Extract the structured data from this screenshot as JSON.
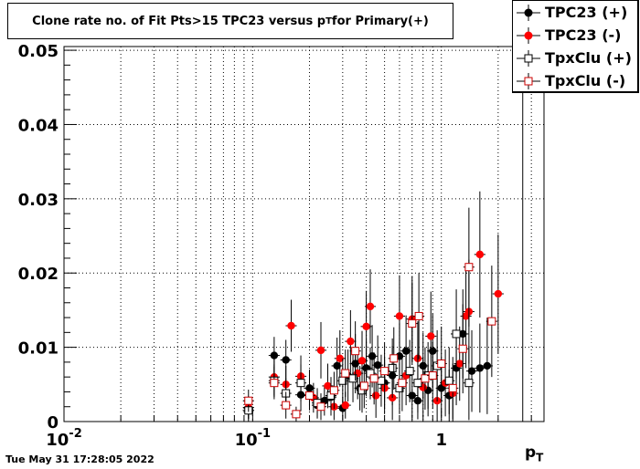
{
  "title_main": "Clone rate no. of Fit Pts>15 TPC23 versus p",
  "title_sub": "T",
  "title_tail": " for Primary(+)",
  "footer": "Tue May 31 17:28:05 2022",
  "xtitle_main": "p",
  "xtitle_sub": "T",
  "legend": [
    {
      "label": "TPC23 (+)",
      "color": "#000000",
      "marker": "filled-circle"
    },
    {
      "label": "TPC23 (-)",
      "color": "#ff0000",
      "marker": "filled-circle"
    },
    {
      "label": "TpxClu (+)",
      "color": "#000000",
      "marker": "open-square"
    },
    {
      "label": "TpxClu (-)",
      "color": "#cc0000",
      "marker": "open-square"
    }
  ],
  "chart_data": {
    "type": "scatter",
    "x_scale": "log",
    "xlim": [
      0.01,
      3.5
    ],
    "ylim": [
      0,
      0.0505
    ],
    "grid": true,
    "legend_position": "top-right",
    "x_tick_labels": [
      {
        "value": 0.01,
        "base": "10",
        "exp": "-2"
      },
      {
        "value": 0.1,
        "base": "10",
        "exp": "-1"
      },
      {
        "value": 1,
        "base": "1",
        "exp": ""
      }
    ],
    "y_ticks": [
      {
        "value": 0,
        "label": "0"
      },
      {
        "value": 0.01,
        "label": "0.01"
      },
      {
        "value": 0.02,
        "label": "0.02"
      },
      {
        "value": 0.03,
        "label": "0.03"
      },
      {
        "value": 0.04,
        "label": "0.04"
      },
      {
        "value": 0.05,
        "label": "0.05"
      }
    ],
    "series": [
      {
        "name": "TPC23 (+)",
        "color": "#000000",
        "marker": "filled-circle",
        "points": [
          {
            "x": 0.095,
            "y": 0.0015,
            "e": 0.0015
          },
          {
            "x": 0.13,
            "y": 0.0089,
            "e": 0.0025
          },
          {
            "x": 0.15,
            "y": 0.0083,
            "e": 0.0027
          },
          {
            "x": 0.18,
            "y": 0.0036,
            "e": 0.0022
          },
          {
            "x": 0.2,
            "y": 0.0045,
            "e": 0.0025
          },
          {
            "x": 0.22,
            "y": 0.0022,
            "e": 0.0018
          },
          {
            "x": 0.24,
            "y": 0.0028,
            "e": 0.002
          },
          {
            "x": 0.26,
            "y": 0.0033,
            "e": 0.0025
          },
          {
            "x": 0.28,
            "y": 0.0075,
            "e": 0.0038
          },
          {
            "x": 0.3,
            "y": 0.0018,
            "e": 0.0015
          },
          {
            "x": 0.32,
            "y": 0.0062,
            "e": 0.0035
          },
          {
            "x": 0.35,
            "y": 0.0078,
            "e": 0.004
          },
          {
            "x": 0.37,
            "y": 0.0045,
            "e": 0.003
          },
          {
            "x": 0.4,
            "y": 0.0072,
            "e": 0.0038
          },
          {
            "x": 0.43,
            "y": 0.0088,
            "e": 0.0042
          },
          {
            "x": 0.46,
            "y": 0.0076,
            "e": 0.004
          },
          {
            "x": 0.5,
            "y": 0.0052,
            "e": 0.0035
          },
          {
            "x": 0.55,
            "y": 0.0062,
            "e": 0.004
          },
          {
            "x": 0.6,
            "y": 0.0088,
            "e": 0.0045
          },
          {
            "x": 0.65,
            "y": 0.0095,
            "e": 0.0048
          },
          {
            "x": 0.7,
            "y": 0.0035,
            "e": 0.003
          },
          {
            "x": 0.75,
            "y": 0.0028,
            "e": 0.0025
          },
          {
            "x": 0.8,
            "y": 0.0075,
            "e": 0.0045
          },
          {
            "x": 0.85,
            "y": 0.0042,
            "e": 0.0035
          },
          {
            "x": 0.9,
            "y": 0.0095,
            "e": 0.005
          },
          {
            "x": 1.0,
            "y": 0.0045,
            "e": 0.004
          },
          {
            "x": 1.1,
            "y": 0.0035,
            "e": 0.0035
          },
          {
            "x": 1.2,
            "y": 0.0072,
            "e": 0.005
          },
          {
            "x": 1.3,
            "y": 0.0118,
            "e": 0.006
          },
          {
            "x": 1.45,
            "y": 0.0068,
            "e": 0.0055
          },
          {
            "x": 1.6,
            "y": 0.0072,
            "e": 0.006
          },
          {
            "x": 1.75,
            "y": 0.0075,
            "e": 0.0065
          }
        ]
      },
      {
        "name": "TPC23 (-)",
        "color": "#ff0000",
        "marker": "filled-circle",
        "points": [
          {
            "x": 0.095,
            "y": 0.0019,
            "e": 0.0015
          },
          {
            "x": 0.13,
            "y": 0.006,
            "e": 0.0025
          },
          {
            "x": 0.15,
            "y": 0.005,
            "e": 0.0025
          },
          {
            "x": 0.16,
            "y": 0.0129,
            "e": 0.0035
          },
          {
            "x": 0.18,
            "y": 0.0061,
            "e": 0.0028
          },
          {
            "x": 0.21,
            "y": 0.0032,
            "e": 0.002
          },
          {
            "x": 0.23,
            "y": 0.0096,
            "e": 0.0038
          },
          {
            "x": 0.25,
            "y": 0.0048,
            "e": 0.003
          },
          {
            "x": 0.27,
            "y": 0.002,
            "e": 0.0018
          },
          {
            "x": 0.29,
            "y": 0.0085,
            "e": 0.0038
          },
          {
            "x": 0.31,
            "y": 0.0022,
            "e": 0.0018
          },
          {
            "x": 0.33,
            "y": 0.0108,
            "e": 0.0042
          },
          {
            "x": 0.36,
            "y": 0.0065,
            "e": 0.0035
          },
          {
            "x": 0.38,
            "y": 0.0082,
            "e": 0.004
          },
          {
            "x": 0.4,
            "y": 0.0128,
            "e": 0.0048
          },
          {
            "x": 0.42,
            "y": 0.0155,
            "e": 0.005
          },
          {
            "x": 0.45,
            "y": 0.0035,
            "e": 0.003
          },
          {
            "x": 0.5,
            "y": 0.0045,
            "e": 0.0035
          },
          {
            "x": 0.55,
            "y": 0.0032,
            "e": 0.003
          },
          {
            "x": 0.6,
            "y": 0.0142,
            "e": 0.0055
          },
          {
            "x": 0.65,
            "y": 0.0062,
            "e": 0.004
          },
          {
            "x": 0.7,
            "y": 0.0138,
            "e": 0.0058
          },
          {
            "x": 0.75,
            "y": 0.0085,
            "e": 0.005
          },
          {
            "x": 0.8,
            "y": 0.0046,
            "e": 0.004
          },
          {
            "x": 0.88,
            "y": 0.0115,
            "e": 0.006
          },
          {
            "x": 0.95,
            "y": 0.0028,
            "e": 0.003
          },
          {
            "x": 1.05,
            "y": 0.0052,
            "e": 0.0045
          },
          {
            "x": 1.15,
            "y": 0.0038,
            "e": 0.004
          },
          {
            "x": 1.25,
            "y": 0.0078,
            "e": 0.005
          },
          {
            "x": 1.35,
            "y": 0.0142,
            "e": 0.007
          },
          {
            "x": 1.4,
            "y": 0.0148,
            "e": 0.007
          },
          {
            "x": 1.6,
            "y": 0.0225,
            "e": 0.0085
          },
          {
            "x": 2.0,
            "y": 0.0172,
            "e": 0.008
          }
        ]
      },
      {
        "name": "TpxClu (+)",
        "color": "#000000",
        "marker": "open-square",
        "points": [
          {
            "x": 0.095,
            "y": 0.0015,
            "e": 0.0012
          },
          {
            "x": 0.13,
            "y": 0.0055,
            "e": 0.0022
          },
          {
            "x": 0.15,
            "y": 0.0038,
            "e": 0.002
          },
          {
            "x": 0.18,
            "y": 0.0052,
            "e": 0.0025
          },
          {
            "x": 0.22,
            "y": 0.0025,
            "e": 0.002
          },
          {
            "x": 0.26,
            "y": 0.0035,
            "e": 0.0025
          },
          {
            "x": 0.3,
            "y": 0.0055,
            "e": 0.003
          },
          {
            "x": 0.34,
            "y": 0.0058,
            "e": 0.0032
          },
          {
            "x": 0.38,
            "y": 0.0042,
            "e": 0.003
          },
          {
            "x": 0.42,
            "y": 0.0065,
            "e": 0.0035
          },
          {
            "x": 0.48,
            "y": 0.0055,
            "e": 0.0035
          },
          {
            "x": 0.55,
            "y": 0.0072,
            "e": 0.004
          },
          {
            "x": 0.6,
            "y": 0.0045,
            "e": 0.0035
          },
          {
            "x": 0.68,
            "y": 0.0068,
            "e": 0.0042
          },
          {
            "x": 0.75,
            "y": 0.0052,
            "e": 0.004
          },
          {
            "x": 0.85,
            "y": 0.0062,
            "e": 0.0045
          },
          {
            "x": 0.95,
            "y": 0.0075,
            "e": 0.0048
          },
          {
            "x": 1.1,
            "y": 0.0055,
            "e": 0.0045
          },
          {
            "x": 1.2,
            "y": 0.0118,
            "e": 0.006
          },
          {
            "x": 1.4,
            "y": 0.0052,
            "e": 0.005
          },
          {
            "x": 2.7,
            "y": 0.05,
            "e": 0.05
          }
        ]
      },
      {
        "name": "TpxClu (-)",
        "color": "#cc0000",
        "marker": "open-square",
        "points": [
          {
            "x": 0.095,
            "y": 0.0028,
            "e": 0.0015
          },
          {
            "x": 0.13,
            "y": 0.0052,
            "e": 0.0022
          },
          {
            "x": 0.15,
            "y": 0.0022,
            "e": 0.0018
          },
          {
            "x": 0.17,
            "y": 0.001,
            "e": 0.001
          },
          {
            "x": 0.2,
            "y": 0.0035,
            "e": 0.002
          },
          {
            "x": 0.23,
            "y": 0.002,
            "e": 0.0018
          },
          {
            "x": 0.27,
            "y": 0.0042,
            "e": 0.0025
          },
          {
            "x": 0.31,
            "y": 0.0065,
            "e": 0.0032
          },
          {
            "x": 0.35,
            "y": 0.0095,
            "e": 0.004
          },
          {
            "x": 0.39,
            "y": 0.0048,
            "e": 0.003
          },
          {
            "x": 0.44,
            "y": 0.0058,
            "e": 0.0035
          },
          {
            "x": 0.5,
            "y": 0.0068,
            "e": 0.0038
          },
          {
            "x": 0.56,
            "y": 0.0085,
            "e": 0.0042
          },
          {
            "x": 0.62,
            "y": 0.0052,
            "e": 0.0038
          },
          {
            "x": 0.7,
            "y": 0.0132,
            "e": 0.0055
          },
          {
            "x": 0.76,
            "y": 0.0142,
            "e": 0.0058
          },
          {
            "x": 0.82,
            "y": 0.0058,
            "e": 0.0042
          },
          {
            "x": 0.9,
            "y": 0.0062,
            "e": 0.0045
          },
          {
            "x": 1.0,
            "y": 0.0078,
            "e": 0.005
          },
          {
            "x": 1.15,
            "y": 0.0045,
            "e": 0.0042
          },
          {
            "x": 1.3,
            "y": 0.0098,
            "e": 0.006
          },
          {
            "x": 1.4,
            "y": 0.0208,
            "e": 0.008
          },
          {
            "x": 1.85,
            "y": 0.0135,
            "e": 0.0075
          }
        ]
      }
    ]
  }
}
